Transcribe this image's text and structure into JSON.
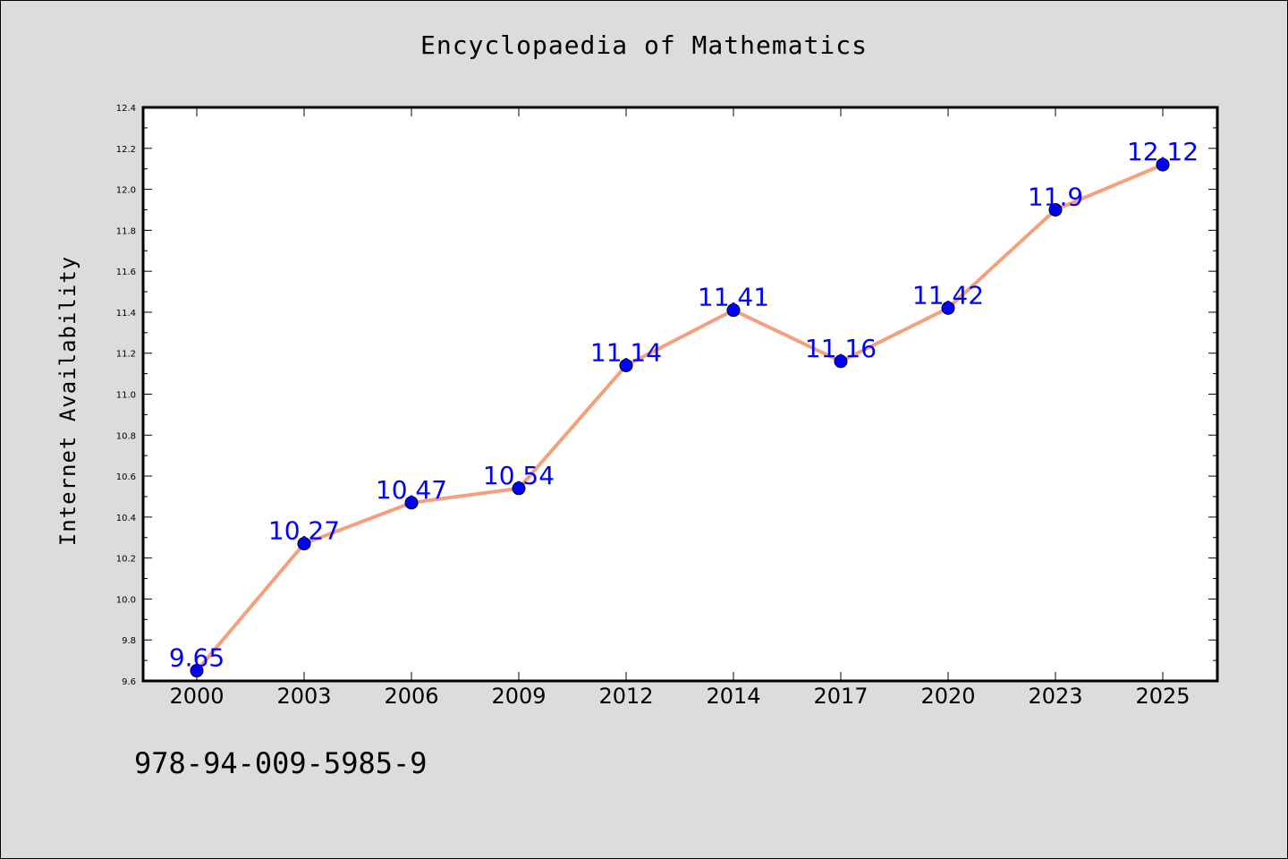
{
  "chart_data": {
    "type": "line",
    "title": "Encyclopaedia of Mathematics",
    "xlabel": "",
    "ylabel": "Internet Availability",
    "categories": [
      "2000",
      "2003",
      "2006",
      "2009",
      "2012",
      "2014",
      "2017",
      "2020",
      "2023",
      "2025"
    ],
    "series": [
      {
        "values": [
          9.65,
          10.27,
          10.47,
          10.54,
          11.14,
          11.41,
          11.16,
          11.42,
          11.9,
          12.12
        ],
        "labels": [
          "9.65",
          "10.27",
          "10.47",
          "10.54",
          "11.14",
          "11.41",
          "11.16",
          "11.42",
          "11.9",
          "12.12"
        ],
        "line_color": "#f4a07c",
        "marker_color": "#0000ff"
      }
    ],
    "ylim": [
      9.6,
      12.4
    ],
    "yticks": [
      "9.6",
      "9.8",
      "10.0",
      "10.2",
      "10.4",
      "10.6",
      "10.8",
      "11.0",
      "11.2",
      "11.4",
      "11.6",
      "11.8",
      "12.0",
      "12.2",
      "12.4"
    ],
    "grid": false,
    "legend": "none"
  },
  "footer": {
    "code": "978-94-009-5985-9"
  },
  "colors": {
    "background": "#dcdcdc",
    "plot_background": "#ffffff",
    "label_color": "#0000ff"
  }
}
